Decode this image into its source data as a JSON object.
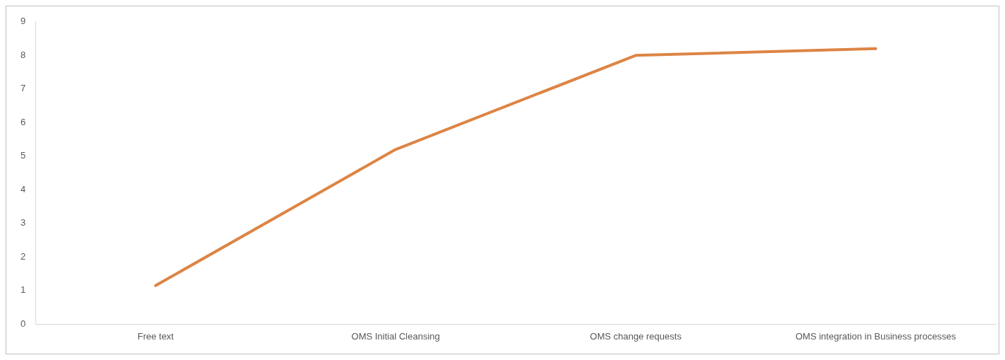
{
  "chart_data": {
    "type": "line",
    "categories": [
      "Free text",
      "OMS Initial Cleansing",
      "OMS change requests",
      "OMS integration in Business processes"
    ],
    "series": [
      {
        "color": "#dd8444",
        "values": [
          1.15,
          5.2,
          8.0,
          8.2
        ]
      }
    ],
    "ylim": [
      0,
      9
    ],
    "yticks": [
      0,
      1,
      2,
      3,
      4,
      5,
      6,
      7,
      8,
      9
    ],
    "grid": false,
    "legend": false,
    "marker": "none"
  }
}
